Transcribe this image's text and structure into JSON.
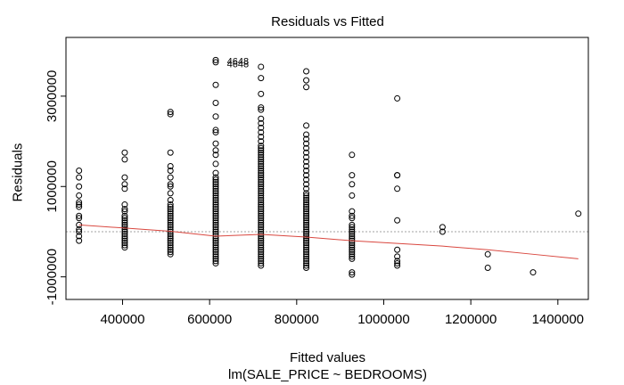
{
  "chart_data": {
    "type": "scatter",
    "title": "Residuals vs Fitted",
    "xlabel": "Fitted values",
    "subtitle": "lm(SALE_PRICE ~ BEDROOMS)",
    "ylabel": "Residuals",
    "xlim": [
      270000,
      1470000
    ],
    "ylim": [
      -1500000,
      4300000
    ],
    "xticks": [
      400000,
      600000,
      800000,
      1000000,
      1200000,
      1400000
    ],
    "xtick_labels": [
      "400000",
      "600000",
      "800000",
      "1000000",
      "1200000",
      "1400000"
    ],
    "yticks": [
      -1000000,
      1000000,
      3000000
    ],
    "ytick_labels": [
      "-1000000",
      "1000000",
      "3000000"
    ],
    "reference_line_y": 0,
    "annotations": [
      {
        "text": "4648",
        "x": 640000,
        "y": 3780000
      },
      {
        "text": "4648",
        "x": 640000,
        "y": 3720000
      }
    ],
    "colors": {
      "points": "#000000",
      "smooth": "#d9473f",
      "reference": "#a0a0a0",
      "box": "#000000"
    },
    "groups": [
      {
        "x": 300000,
        "residuals": [
          1350000,
          1200000,
          1000000,
          800000,
          650000,
          600000,
          550000,
          350000,
          300000,
          150000,
          50000,
          0,
          -100000,
          -200000
        ]
      },
      {
        "x": 405000,
        "residuals": [
          1750000,
          1600000,
          1200000,
          1050000,
          950000,
          600000,
          500000,
          450000,
          350000,
          300000,
          250000,
          200000,
          150000,
          100000,
          50000,
          0,
          -50000,
          -100000,
          -150000,
          -200000,
          -250000,
          -300000,
          -350000
        ]
      },
      {
        "x": 510000,
        "residuals": [
          2650000,
          2600000,
          1750000,
          1450000,
          1350000,
          1200000,
          1050000,
          1000000,
          850000,
          700000,
          600000,
          550000,
          500000,
          450000,
          400000,
          350000,
          300000,
          250000,
          200000,
          150000,
          100000,
          50000,
          0,
          -50000,
          -100000,
          -150000,
          -200000,
          -250000,
          -300000,
          -350000,
          -400000,
          -450000,
          -500000
        ]
      },
      {
        "x": 614000,
        "residuals": [
          3800000,
          3750000,
          3250000,
          2850000,
          2550000,
          2250000,
          2200000,
          1950000,
          1800000,
          1700000,
          1500000,
          1300000,
          1200000,
          1150000,
          1100000,
          1050000,
          1000000,
          950000,
          900000,
          850000,
          800000,
          750000,
          700000,
          650000,
          600000,
          550000,
          500000,
          450000,
          400000,
          350000,
          300000,
          250000,
          200000,
          150000,
          100000,
          50000,
          0,
          -50000,
          -100000,
          -150000,
          -200000,
          -250000,
          -300000,
          -350000,
          -400000,
          -450000,
          -500000,
          -550000,
          -600000,
          -650000,
          -700000
        ]
      },
      {
        "x": 718000,
        "residuals": [
          3650000,
          3400000,
          3050000,
          2750000,
          2700000,
          2500000,
          2400000,
          2300000,
          2200000,
          2100000,
          2000000,
          1900000,
          1850000,
          1800000,
          1750000,
          1700000,
          1650000,
          1600000,
          1550000,
          1500000,
          1450000,
          1400000,
          1350000,
          1300000,
          1250000,
          1200000,
          1150000,
          1100000,
          1050000,
          1000000,
          950000,
          900000,
          850000,
          800000,
          750000,
          700000,
          650000,
          600000,
          550000,
          500000,
          450000,
          400000,
          350000,
          300000,
          250000,
          200000,
          150000,
          100000,
          50000,
          0,
          -50000,
          -100000,
          -150000,
          -200000,
          -250000,
          -300000,
          -350000,
          -400000,
          -450000,
          -500000,
          -550000,
          -600000,
          -650000,
          -700000,
          -750000
        ]
      },
      {
        "x": 822000,
        "residuals": [
          3550000,
          3350000,
          3200000,
          2350000,
          2150000,
          2050000,
          1950000,
          1850000,
          1750000,
          1650000,
          1550000,
          1450000,
          1350000,
          1250000,
          1150000,
          1050000,
          950000,
          850000,
          800000,
          750000,
          700000,
          650000,
          600000,
          550000,
          500000,
          450000,
          400000,
          350000,
          300000,
          250000,
          200000,
          150000,
          100000,
          50000,
          0,
          -50000,
          -100000,
          -150000,
          -200000,
          -250000,
          -300000,
          -350000,
          -400000,
          -450000,
          -500000,
          -550000,
          -600000,
          -650000,
          -700000,
          -750000,
          -800000
        ]
      },
      {
        "x": 927000,
        "residuals": [
          1700000,
          1250000,
          1050000,
          800000,
          450000,
          350000,
          300000,
          150000,
          100000,
          50000,
          0,
          -50000,
          -100000,
          -150000,
          -200000,
          -250000,
          -300000,
          -350000,
          -400000,
          -450000,
          -500000,
          -550000,
          -600000,
          -900000,
          -950000
        ]
      },
      {
        "x": 1031000,
        "residuals": [
          2950000,
          1250000,
          1250000,
          950000,
          250000,
          -400000,
          -550000,
          -650000,
          -700000,
          -750000
        ]
      },
      {
        "x": 1135000,
        "residuals": [
          100000,
          0
        ]
      },
      {
        "x": 1239000,
        "residuals": [
          -500000,
          -800000
        ]
      },
      {
        "x": 1343000,
        "residuals": [
          -900000
        ]
      },
      {
        "x": 1447000,
        "residuals": [
          400000
        ]
      }
    ],
    "smooth_line": {
      "x": [
        300000,
        405000,
        510000,
        614000,
        718000,
        822000,
        927000,
        1031000,
        1135000,
        1239000,
        1343000,
        1447000
      ],
      "y": [
        150000,
        80000,
        10000,
        -100000,
        -60000,
        -120000,
        -200000,
        -260000,
        -320000,
        -400000,
        -500000,
        -600000
      ]
    }
  }
}
